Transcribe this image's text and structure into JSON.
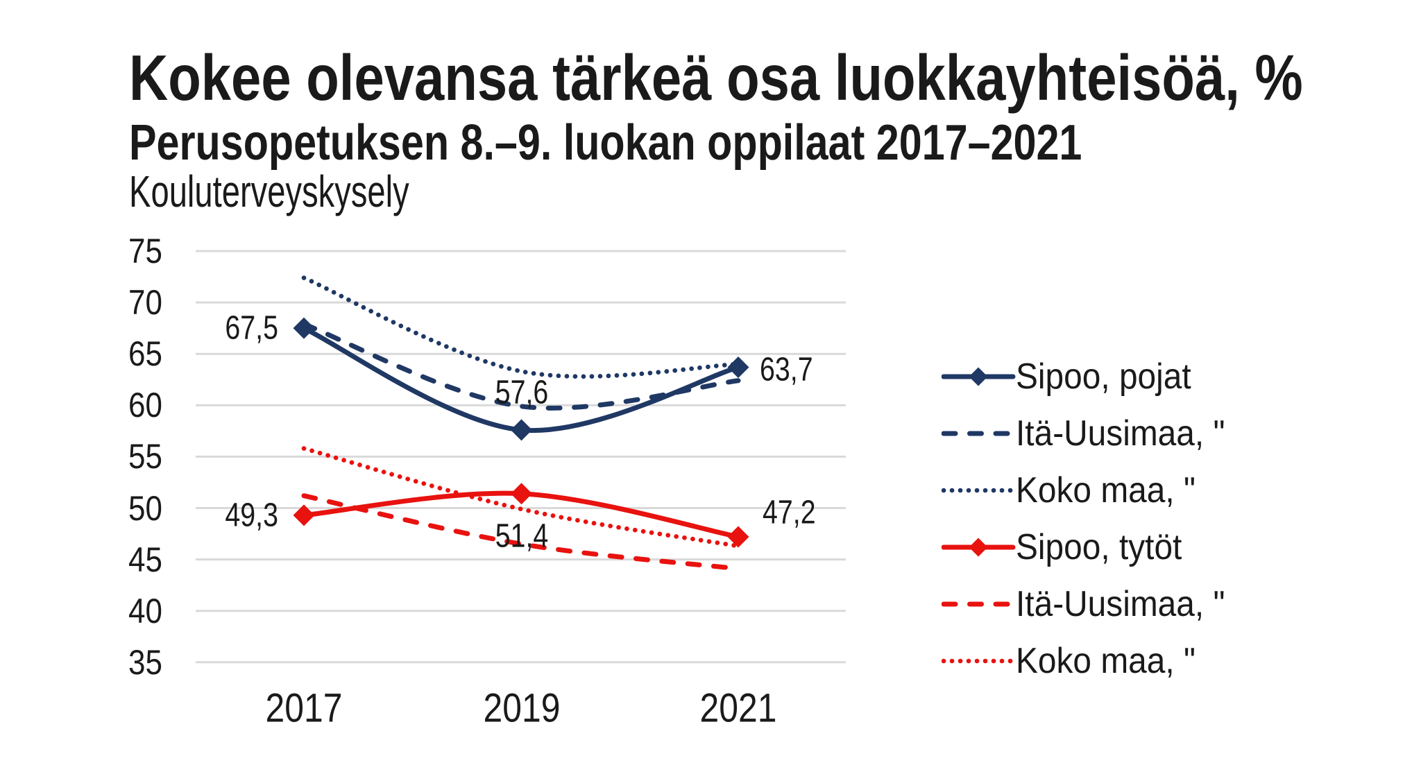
{
  "header": {
    "title": "Kokee olevansa tärkeä osa luokkayhteisöä, %",
    "subtitle": "Perusopetuksen 8.–9. luokan oppilaat 2017–2021",
    "source": "Kouluterveyskysely"
  },
  "colors": {
    "navy": "#1F3864",
    "red": "#E8120F",
    "gridline": "#D9D9D9",
    "text": "#1A1A1A",
    "background": "#FFFFFF"
  },
  "chart_data": {
    "type": "line",
    "title": "Kokee olevansa tärkeä osa luokkayhteisöä, %",
    "subtitle": "Perusopetuksen 8.–9. luokan oppilaat 2017–2021",
    "source_note": "Kouluterveyskysely",
    "categories": [
      "2017",
      "2019",
      "2021"
    ],
    "ylim": [
      35,
      75
    ],
    "ytick_step": 5,
    "yticks": [
      "75",
      "70",
      "65",
      "60",
      "55",
      "50",
      "45",
      "40",
      "35"
    ],
    "grid": true,
    "legend_position": "right",
    "xlabel": "",
    "ylabel": "",
    "series": [
      {
        "name": "Sipoo, pojat",
        "color": "navy",
        "style": "solid",
        "marker": "diamond",
        "values": [
          67.5,
          57.6,
          63.7
        ],
        "labels": [
          "67,5",
          "57,6",
          "63,7"
        ],
        "label_placement": [
          "left",
          "above",
          "right"
        ]
      },
      {
        "name": "Itä-Uusimaa, \"",
        "color": "navy",
        "style": "dashed",
        "marker": "none",
        "values": [
          67.9,
          59.9,
          62.4
        ]
      },
      {
        "name": "Koko maa, \"",
        "color": "navy",
        "style": "dotted",
        "marker": "none",
        "values": [
          72.4,
          63.3,
          64.0
        ]
      },
      {
        "name": "Sipoo, tytöt",
        "color": "red",
        "style": "solid",
        "marker": "diamond",
        "values": [
          49.3,
          51.4,
          47.2
        ],
        "labels": [
          "49,3",
          "51,4",
          "47,2"
        ],
        "label_placement": [
          "left",
          "below",
          "right-up"
        ]
      },
      {
        "name": "Itä-Uusimaa, \"",
        "color": "red",
        "style": "dashed",
        "marker": "none",
        "values": [
          51.2,
          46.5,
          44.1
        ]
      },
      {
        "name": "Koko maa, \"",
        "color": "red",
        "style": "dotted",
        "marker": "none",
        "values": [
          55.8,
          49.9,
          46.3
        ]
      }
    ]
  }
}
